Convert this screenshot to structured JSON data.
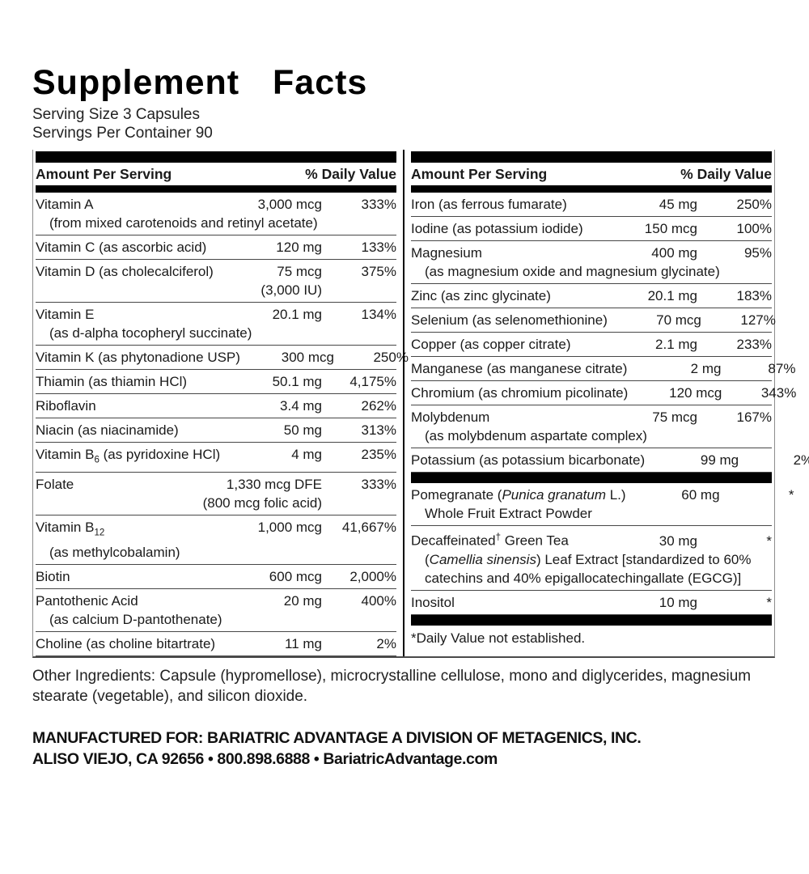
{
  "title": "Supplement Facts",
  "serving": {
    "size": "Serving Size 3 Capsules",
    "per_container": "Servings Per Container 90"
  },
  "table": {
    "header": {
      "amount": "Amount Per Serving",
      "dv": "% Daily Value"
    },
    "left_rows": [
      {
        "name": "Vitamin A",
        "amount": "3,000 mcg",
        "dv": "333%",
        "sub": "(from mixed carotenoids and retinyl acetate)"
      },
      {
        "name": "Vitamin C (as ascorbic acid)",
        "amount": "120 mg",
        "dv": "133%"
      },
      {
        "name": "Vitamin D (as cholecalciferol)",
        "amount": "75 mcg",
        "amount2": "(3,000 IU)",
        "dv": "375%"
      },
      {
        "name": "Vitamin E",
        "amount": "20.1 mg",
        "dv": "134%",
        "sub": "(as d-alpha tocopheryl succinate)"
      },
      {
        "name": "Vitamin K (as phytonadione USP)",
        "amount": "300 mcg",
        "dv": "250%"
      },
      {
        "name": "Thiamin (as thiamin HCl)",
        "amount": "50.1 mg",
        "dv": "4,175%"
      },
      {
        "name": "Riboflavin",
        "amount": "3.4 mg",
        "dv": "262%"
      },
      {
        "name": "Niacin (as niacinamide)",
        "amount": "50 mg",
        "dv": "313%"
      },
      {
        "name": "Vitamin B~6~ (as pyridoxine HCl)",
        "amount": "4 mg",
        "dv": "235%"
      },
      {
        "name": "Folate",
        "amount": "1,330 mcg DFE",
        "amount2": "(800 mcg folic acid)",
        "dv": "333%"
      },
      {
        "name": "Vitamin B~12~",
        "amount": "1,000 mcg",
        "dv": "41,667%",
        "sub": "(as methylcobalamin)"
      },
      {
        "name": "Biotin",
        "amount": "600 mcg",
        "dv": "2,000%"
      },
      {
        "name": "Pantothenic Acid",
        "amount": "20 mg",
        "dv": "400%",
        "sub": "(as calcium D-pantothenate)"
      },
      {
        "name": "Choline (as choline bitartrate)",
        "amount": "11 mg",
        "dv": "2%"
      }
    ],
    "right_rows": [
      {
        "name": "Iron (as ferrous fumarate)",
        "amount": "45 mg",
        "dv": "250%"
      },
      {
        "name": "Iodine (as potassium iodide)",
        "amount": "150 mcg",
        "dv": "100%"
      },
      {
        "name": "Magnesium",
        "amount": "400 mg",
        "dv": "95%",
        "sub": "(as magnesium oxide and magnesium glycinate)"
      },
      {
        "name": "Zinc (as zinc glycinate)",
        "amount": "20.1 mg",
        "dv": "183%"
      },
      {
        "name": "Selenium (as selenomethionine)",
        "amount": "70 mcg",
        "dv": "127%"
      },
      {
        "name": "Copper (as copper citrate)",
        "amount": "2.1 mg",
        "dv": "233%"
      },
      {
        "name": "Manganese (as manganese citrate)",
        "amount": "2 mg",
        "dv": "87%"
      },
      {
        "name": "Chromium (as chromium picolinate)",
        "amount": "120 mcg",
        "dv": "343%"
      },
      {
        "name": "Molybdenum",
        "amount": "75 mcg",
        "dv": "167%",
        "sub": "(as molybdenum aspartate complex)"
      },
      {
        "name": "Potassium (as potassium bicarbonate)",
        "amount": "99 mg",
        "dv": "2%"
      },
      {
        "bar": true
      },
      {
        "name": "Pomegranate (/Punica granatum/ L.)",
        "amount": "60 mg",
        "dv": "*",
        "sub": "Whole Fruit Extract Powder"
      },
      {
        "name": "Decaffeinated^†^ Green Tea",
        "amount": "30 mg",
        "dv": "*",
        "sub": "(/Camellia sinensis/) Leaf Extract [standardized to 60% catechins and 40% epigallocatechingallate (EGCG)]"
      },
      {
        "name": "Inositol",
        "amount": "10 mg",
        "dv": "*"
      },
      {
        "bar": true
      },
      {
        "note": "*Daily Value not established."
      }
    ]
  },
  "other_ingredients": "Other Ingredients: Capsule (hypromellose), microcrystalline cellulose, mono and diglycerides, magnesium stearate (vegetable), and silicon dioxide.",
  "footer": {
    "line1": "MANUFACTURED FOR: BARIATRIC ADVANTAGE A DIVISION OF METAGENICS, INC.",
    "line2": "ALISO VIEJO, CA 92656 • 800.898.6888 • BariatricAdvantage.com"
  },
  "colors": {
    "bar": "#000000",
    "text": "#1a1a1a",
    "rule": "#474747"
  }
}
